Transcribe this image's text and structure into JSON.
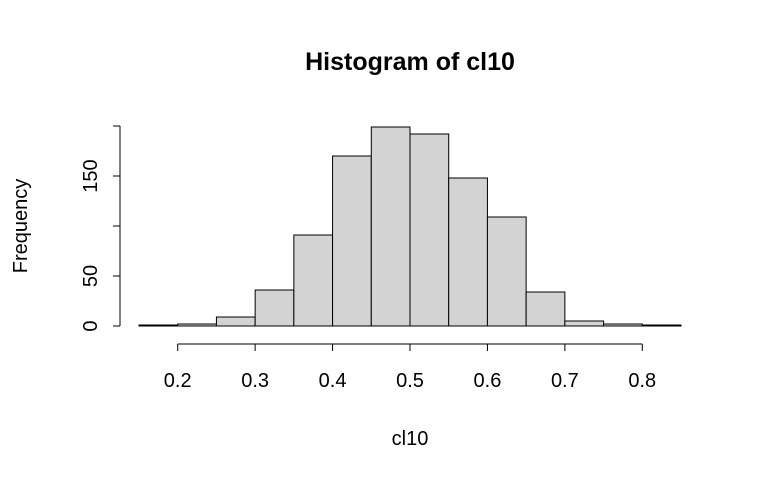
{
  "chart_data": {
    "type": "bar",
    "title": "Histogram of cl10",
    "xlabel": "cl10",
    "ylabel": "Frequency",
    "bins": [
      {
        "start": 0.15,
        "end": 0.2,
        "count": 1
      },
      {
        "start": 0.2,
        "end": 0.25,
        "count": 2
      },
      {
        "start": 0.25,
        "end": 0.3,
        "count": 9
      },
      {
        "start": 0.3,
        "end": 0.35,
        "count": 36
      },
      {
        "start": 0.35,
        "end": 0.4,
        "count": 91
      },
      {
        "start": 0.4,
        "end": 0.45,
        "count": 170
      },
      {
        "start": 0.45,
        "end": 0.5,
        "count": 199
      },
      {
        "start": 0.5,
        "end": 0.55,
        "count": 192
      },
      {
        "start": 0.55,
        "end": 0.6,
        "count": 148
      },
      {
        "start": 0.6,
        "end": 0.65,
        "count": 109
      },
      {
        "start": 0.65,
        "end": 0.7,
        "count": 34
      },
      {
        "start": 0.7,
        "end": 0.75,
        "count": 5
      },
      {
        "start": 0.75,
        "end": 0.8,
        "count": 2
      },
      {
        "start": 0.8,
        "end": 0.85,
        "count": 1
      }
    ],
    "xlim": [
      0.15,
      0.85
    ],
    "ylim": [
      0,
      200
    ],
    "x_ticks": [
      "0.2",
      "0.3",
      "0.4",
      "0.5",
      "0.6",
      "0.7",
      "0.8"
    ],
    "y_ticks": [
      "0",
      "50",
      "150"
    ],
    "grid": false,
    "bar_color": "#d3d3d3"
  }
}
